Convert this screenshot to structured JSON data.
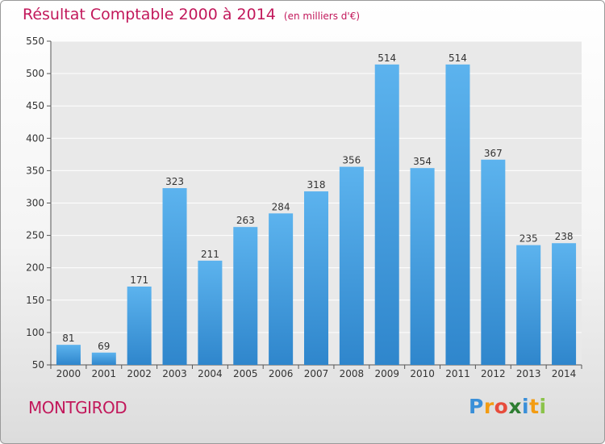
{
  "chart_data": {
    "type": "bar",
    "title": "Résultat Comptable 2000 à 2014",
    "unit": "(en milliers d'€)",
    "categories": [
      "2000",
      "2001",
      "2002",
      "2003",
      "2004",
      "2005",
      "2006",
      "2007",
      "2008",
      "2009",
      "2010",
      "2011",
      "2012",
      "2013",
      "2014"
    ],
    "values": [
      81,
      69,
      171,
      323,
      211,
      263,
      284,
      318,
      356,
      514,
      354,
      514,
      367,
      235,
      238
    ],
    "ylim": [
      50,
      550
    ],
    "yticks": [
      50,
      100,
      150,
      200,
      250,
      300,
      350,
      400,
      450,
      500,
      550
    ],
    "grid": true,
    "bar_color": "#4a9fdc"
  },
  "commune": "MONTGIROD",
  "logo": {
    "letters": [
      "P",
      "r",
      "o",
      "x",
      "i",
      "t",
      "i"
    ],
    "colors": [
      "#3a8fd8",
      "#f39c12",
      "#e74c3c",
      "#2e7d32",
      "#3a8fd8",
      "#f39c12",
      "#8bc34a"
    ]
  }
}
